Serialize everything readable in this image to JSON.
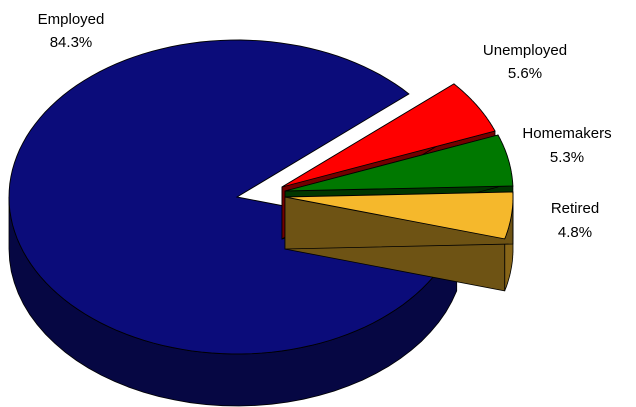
{
  "chart_data": {
    "type": "pie",
    "style": "3d-exploded",
    "legend": "none",
    "slices": [
      {
        "label": "Employed",
        "value": 84.3,
        "value_label": "84.3%",
        "color": "#0b0c7a"
      },
      {
        "label": "Unemployed",
        "value": 5.6,
        "value_label": "5.6%",
        "color": "#ff0000"
      },
      {
        "label": "Homemakers",
        "value": 5.3,
        "value_label": "5.3%",
        "color": "#007800"
      },
      {
        "label": "Retired",
        "value": 4.8,
        "value_label": "4.8%",
        "color": "#f5b82c"
      }
    ]
  }
}
